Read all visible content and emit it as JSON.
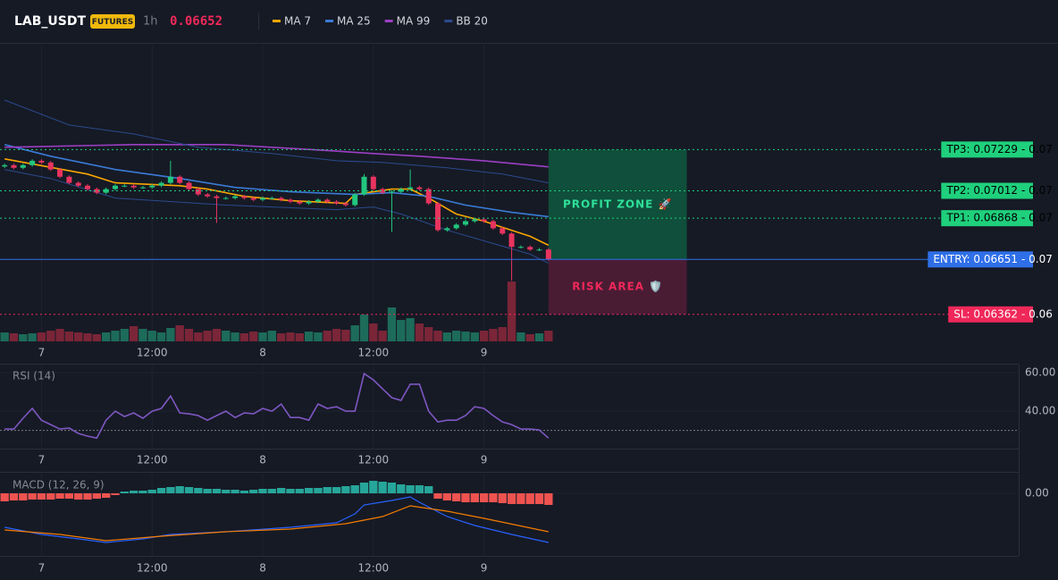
{
  "header": {
    "symbol": "LAB_USDT",
    "badge": "FUTURES",
    "interval": "1h",
    "price": 0.06652,
    "price_color": "#f0285a"
  },
  "chart_data": [
    {
      "type": "candlestick",
      "xlim": [
        -0.5,
        110
      ],
      "ylim": [
        0.0622,
        0.0779
      ],
      "xticks": [
        {
          "value": 4,
          "label": "7"
        },
        {
          "value": 16,
          "label": "12:00"
        },
        {
          "value": 28,
          "label": "8"
        },
        {
          "value": 40,
          "label": "12:00"
        },
        {
          "value": 52,
          "label": "9"
        }
      ],
      "grid": true,
      "up_color": "#22c77e",
      "down_color": "#e8345f",
      "volume_up_color": "#1d6b5a",
      "volume_down_color": "#7a2538",
      "x": [
        0,
        1,
        2,
        3,
        4,
        5,
        6,
        7,
        8,
        9,
        10,
        11,
        12,
        13,
        14,
        15,
        16,
        17,
        18,
        19,
        20,
        21,
        22,
        23,
        24,
        25,
        26,
        27,
        28,
        29,
        30,
        31,
        32,
        33,
        34,
        35,
        36,
        37,
        38,
        39,
        40,
        41,
        42,
        43,
        44,
        45,
        46,
        47,
        48,
        49,
        50,
        51,
        52,
        53,
        54,
        55,
        56,
        57,
        58,
        59
      ],
      "open": [
        0.0714,
        0.07147,
        0.07133,
        0.07147,
        0.0717,
        0.07161,
        0.07124,
        0.07086,
        0.07054,
        0.07039,
        0.07021,
        0.07002,
        0.07021,
        0.07039,
        0.07039,
        0.0703,
        0.0703,
        0.07039,
        0.07054,
        0.07086,
        0.07054,
        0.07021,
        0.06993,
        0.06983,
        0.06974,
        0.06974,
        0.06983,
        0.06974,
        0.06965,
        0.06974,
        0.06974,
        0.06965,
        0.06955,
        0.06946,
        0.06955,
        0.06965,
        0.06955,
        0.06946,
        0.06937,
        0.06993,
        0.07086,
        0.07021,
        0.07002,
        0.07007,
        0.07021,
        0.0703,
        0.07021,
        0.06946,
        0.06805,
        0.06815,
        0.06834,
        0.06852,
        0.06862,
        0.06852,
        0.06815,
        0.06787,
        0.06717,
        0.06717,
        0.06703,
        0.06703
      ],
      "high": [
        0.07155,
        0.07155,
        0.07155,
        0.07178,
        0.07178,
        0.07169,
        0.07132,
        0.07094,
        0.07062,
        0.07047,
        0.07029,
        0.07029,
        0.07047,
        0.07047,
        0.07047,
        0.07038,
        0.07047,
        0.07062,
        0.0717,
        0.07094,
        0.07062,
        0.07029,
        0.07001,
        0.06991,
        0.06982,
        0.06991,
        0.06991,
        0.06982,
        0.06982,
        0.06982,
        0.06982,
        0.06973,
        0.06963,
        0.06963,
        0.06973,
        0.06973,
        0.06963,
        0.06954,
        0.07001,
        0.071,
        0.07094,
        0.07029,
        0.07015,
        0.07029,
        0.07124,
        0.07038,
        0.07029,
        0.06954,
        0.06823,
        0.06842,
        0.0686,
        0.0687,
        0.0687,
        0.0686,
        0.06823,
        0.06795,
        0.06725,
        0.06725,
        0.06711,
        0.06711
      ],
      "low": [
        0.07132,
        0.07125,
        0.07125,
        0.07139,
        0.07153,
        0.07116,
        0.07078,
        0.07046,
        0.07031,
        0.07013,
        0.06994,
        0.06994,
        0.07013,
        0.07031,
        0.07022,
        0.07022,
        0.07022,
        0.07031,
        0.07046,
        0.07046,
        0.07013,
        0.06985,
        0.06975,
        0.06843,
        0.06966,
        0.06966,
        0.06966,
        0.06957,
        0.06957,
        0.06966,
        0.06957,
        0.06947,
        0.06938,
        0.06938,
        0.06947,
        0.06947,
        0.06938,
        0.06929,
        0.06929,
        0.06985,
        0.07013,
        0.06994,
        0.06796,
        0.06999,
        0.07013,
        0.07013,
        0.06938,
        0.06797,
        0.06797,
        0.06807,
        0.06826,
        0.06844,
        0.06844,
        0.06807,
        0.06779,
        0.06539,
        0.06709,
        0.06695,
        0.06695,
        0.06644
      ],
      "close": [
        0.07147,
        0.07133,
        0.07147,
        0.0717,
        0.07161,
        0.07124,
        0.07086,
        0.07054,
        0.07039,
        0.07021,
        0.07002,
        0.07021,
        0.07039,
        0.07039,
        0.0703,
        0.0703,
        0.07039,
        0.07054,
        0.07086,
        0.07054,
        0.07021,
        0.06993,
        0.06983,
        0.06974,
        0.06974,
        0.06983,
        0.06974,
        0.06965,
        0.06974,
        0.06974,
        0.06965,
        0.06955,
        0.06946,
        0.06955,
        0.06965,
        0.06955,
        0.06946,
        0.06937,
        0.06993,
        0.07086,
        0.07021,
        0.07002,
        0.07007,
        0.07021,
        0.0703,
        0.07021,
        0.06946,
        0.06805,
        0.06815,
        0.06834,
        0.06852,
        0.06862,
        0.06852,
        0.06815,
        0.06787,
        0.06717,
        0.06717,
        0.06703,
        0.06703,
        0.06652
      ],
      "volume": [
        10,
        9,
        8,
        9,
        10,
        12,
        14,
        11,
        10,
        9,
        8,
        10,
        12,
        14,
        17,
        14,
        12,
        10,
        15,
        18,
        14,
        10,
        12,
        14,
        12,
        10,
        9,
        11,
        10,
        12,
        9,
        10,
        9,
        11,
        10,
        12,
        14,
        13,
        18,
        30,
        20,
        12,
        38,
        24,
        26,
        20,
        16,
        12,
        10,
        12,
        11,
        10,
        12,
        14,
        16,
        67,
        10,
        8,
        9,
        12
      ],
      "series": [
        {
          "name": "MA 7",
          "color": "#f7a600",
          "x": [
            0,
            9,
            12,
            19,
            22,
            26,
            31,
            37,
            38,
            42,
            44,
            46,
            49,
            52,
            54,
            57,
            59
          ],
          "values": [
            0.0718,
            0.071,
            0.07054,
            0.07039,
            0.07021,
            0.06983,
            0.0696,
            0.06946,
            0.06993,
            0.07021,
            0.07021,
            0.06974,
            0.0689,
            0.06852,
            0.0682,
            0.06773,
            0.06726
          ]
        },
        {
          "name": "MA 25",
          "color": "#3a7bd5",
          "x": [
            0,
            5,
            12,
            19,
            25,
            31,
            38,
            42,
            46,
            50,
            55,
            59
          ],
          "values": [
            0.07255,
            0.07194,
            0.07124,
            0.07077,
            0.0703,
            0.07007,
            0.06993,
            0.07002,
            0.06983,
            0.06937,
            0.06899,
            0.06876
          ]
        },
        {
          "name": "MA 99",
          "color": "#9c3fc4",
          "x": [
            0,
            14,
            24,
            34,
            40,
            45,
            52,
            59
          ],
          "values": [
            0.07241,
            0.07255,
            0.07255,
            0.07227,
            0.07208,
            0.07194,
            0.0717,
            0.07138
          ]
        },
        {
          "name": "BB 20",
          "color": "#2b4a8c",
          "bands": [
            {
              "x": [
                0,
                7,
                14,
                21,
                29,
                36,
                41,
                48,
                54,
                59
              ],
              "values": [
                0.07489,
                0.07358,
                0.07311,
                0.07241,
                0.07208,
                0.0717,
                0.07161,
                0.07133,
                0.071,
                0.07054
              ]
            },
            {
              "x": [
                0,
                5,
                12,
                24,
                36,
                40,
                43,
                48,
                52,
                57,
                59
              ],
              "values": [
                0.07124,
                0.07077,
                0.06974,
                0.06937,
                0.06913,
                0.06927,
                0.0689,
                0.06805,
                0.06749,
                0.06679,
                0.06632
              ]
            }
          ]
        }
      ],
      "levels": [
        {
          "label": "TP3: 0.07229",
          "axis_label": "- 0.07",
          "value": 0.07229,
          "color": "#1fd07c",
          "text_color": "#000000",
          "style": "dotted"
        },
        {
          "label": "TP2: 0.07012",
          "axis_label": "- 0.07",
          "value": 0.07012,
          "color": "#1fd07c",
          "text_color": "#000000",
          "style": "dotted"
        },
        {
          "label": "TP1: 0.06868",
          "axis_label": "- 0.07",
          "value": 0.06868,
          "color": "#1fd07c",
          "text_color": "#000000",
          "style": "dotted"
        },
        {
          "label": "ENTRY: 0.06651",
          "axis_label": "- 0.07",
          "value": 0.06651,
          "color": "#2f6fe8",
          "text_color": "#ffffff",
          "style": "solid"
        },
        {
          "label": "SL: 0.06362",
          "axis_label": "- 0.06",
          "value": 0.06362,
          "color": "#f0285a",
          "text_color": "#ffffff",
          "style": "dotted"
        }
      ],
      "zones": [
        {
          "label": "PROFIT ZONE 🚀",
          "from": 0.06651,
          "to": 0.07229,
          "x_range": [
            59,
            74
          ],
          "color": "#0f4f3b",
          "text_color": "#2fe09a"
        },
        {
          "label": "RISK AREA 🛡️",
          "from": 0.06362,
          "to": 0.06651,
          "x_range": [
            59,
            74
          ],
          "color": "#4a1c34",
          "text_color": "#f0285a"
        }
      ]
    },
    {
      "type": "line",
      "title": "RSI (14)",
      "color": "#7e57c2",
      "xlim": [
        -0.5,
        110
      ],
      "ylim": [
        20.5,
        64.2
      ],
      "xticks": [
        {
          "value": 4,
          "label": "7"
        },
        {
          "value": 16,
          "label": "12:00"
        },
        {
          "value": 28,
          "label": "8"
        },
        {
          "value": 40,
          "label": "12:00"
        },
        {
          "value": 52,
          "label": "9"
        }
      ],
      "yticks": [
        {
          "value": 40,
          "label": "40.00"
        },
        {
          "value": 60,
          "label": "60.00"
        }
      ],
      "grid": true,
      "reference_lines": [
        30
      ],
      "x": [
        0,
        1,
        2,
        3,
        4,
        5,
        6,
        7,
        8,
        9,
        10,
        11,
        12,
        13,
        14,
        15,
        16,
        17,
        18,
        19,
        20,
        21,
        22,
        23,
        24,
        25,
        26,
        27,
        28,
        29,
        30,
        31,
        32,
        33,
        34,
        35,
        36,
        37,
        38,
        39,
        40,
        41,
        42,
        43,
        44,
        45,
        46,
        47,
        48,
        49,
        50,
        51,
        52,
        53,
        54,
        55,
        56,
        57,
        58,
        59
      ],
      "values": [
        30.7,
        30.7,
        36.3,
        41.4,
        35.3,
        33.0,
        30.7,
        31.2,
        28.4,
        27.0,
        26.0,
        35.3,
        40.0,
        37.2,
        39.1,
        36.3,
        40.0,
        41.4,
        47.9,
        39.1,
        38.6,
        37.7,
        35.3,
        37.7,
        40.0,
        36.7,
        39.1,
        38.6,
        41.4,
        40.0,
        43.7,
        36.7,
        36.7,
        35.3,
        43.7,
        41.4,
        42.3,
        40.0,
        40.0,
        59.5,
        56.3,
        51.6,
        47.0,
        45.6,
        54.0,
        54.0,
        40.0,
        34.4,
        35.3,
        35.3,
        37.7,
        42.3,
        41.4,
        37.7,
        34.4,
        33.0,
        30.7,
        30.7,
        30.2,
        26.0
      ]
    },
    {
      "type": "macd",
      "title": "MACD (12, 26, 9)",
      "xlim": [
        -0.5,
        110
      ],
      "ylim": [
        -0.00014,
        4.4e-05
      ],
      "xticks": [
        {
          "value": 4,
          "label": "7"
        },
        {
          "value": 16,
          "label": "12:00"
        },
        {
          "value": 28,
          "label": "8"
        },
        {
          "value": 40,
          "label": "12:00"
        },
        {
          "value": 52,
          "label": "9"
        }
      ],
      "yticks": [
        {
          "value": 0,
          "label": "0.00"
        }
      ],
      "grid": true,
      "positive_color": "#26a69a",
      "negative_color": "#ef5350",
      "x": [
        0,
        1,
        2,
        3,
        4,
        5,
        6,
        7,
        8,
        9,
        10,
        11,
        12,
        13,
        14,
        15,
        16,
        17,
        18,
        19,
        20,
        21,
        22,
        23,
        24,
        25,
        26,
        27,
        28,
        29,
        30,
        31,
        32,
        33,
        34,
        35,
        36,
        37,
        38,
        39,
        40,
        41,
        42,
        43,
        44,
        45,
        46,
        47,
        48,
        49,
        50,
        51,
        52,
        53,
        54,
        55,
        56,
        57,
        58,
        59
      ],
      "histogram": [
        -1.8e-05,
        -1.6e-05,
        -1.6e-05,
        -1.4e-05,
        -1.4e-05,
        -1.4e-05,
        -1.2e-05,
        -1.2e-05,
        -1.4e-05,
        -1.4e-05,
        -1.2e-05,
        -1e-05,
        -4e-06,
        4e-06,
        6e-06,
        6e-06,
        8e-06,
        1.2e-05,
        1.4e-05,
        1.6e-05,
        1.4e-05,
        1.2e-05,
        1e-05,
        1e-05,
        8e-06,
        8e-06,
        6e-06,
        8e-06,
        1e-05,
        1e-05,
        1.2e-05,
        1e-05,
        1e-05,
        1.2e-05,
        1.2e-05,
        1.4e-05,
        1.4e-05,
        1.6e-05,
        1.8e-05,
        2.4e-05,
        2.8e-05,
        2.6e-05,
        2.4e-05,
        2e-05,
        1.8e-05,
        1.8e-05,
        1.6e-05,
        -1.2e-05,
        -1.6e-05,
        -1.8e-05,
        -2e-05,
        -2e-05,
        -2e-05,
        -2e-05,
        -2.2e-05,
        -2.4e-05,
        -2.4e-05,
        -2.4e-05,
        -2.4e-05,
        -2.6e-05
      ],
      "series": [
        {
          "color": "#2962ff",
          "x": [
            0,
            4,
            8,
            11,
            15,
            18,
            24,
            31,
            36,
            38,
            39,
            42,
            44,
            45,
            48,
            51,
            55,
            59
          ],
          "values": [
            -7.6e-05,
            -9.2e-05,
            -0.000102,
            -0.00011,
            -0.000102,
            -9.2e-05,
            -8.6e-05,
            -7.6e-05,
            -6.6e-05,
            -4.6e-05,
            -2.6e-05,
            -1.6e-05,
            -8e-06,
            -2e-05,
            -5.2e-05,
            -7.2e-05,
            -9.2e-05,
            -0.00011
          ]
        },
        {
          "color": "#f57c00",
          "x": [
            0,
            6,
            11,
            17,
            24,
            31,
            37,
            41,
            44,
            48,
            52,
            59
          ],
          "values": [
            -8.2e-05,
            -9.2e-05,
            -0.000106,
            -9.6e-05,
            -8.6e-05,
            -8e-05,
            -6.8e-05,
            -5.2e-05,
            -2.8e-05,
            -4e-05,
            -5.6e-05,
            -8.6e-05
          ]
        }
      ]
    }
  ]
}
